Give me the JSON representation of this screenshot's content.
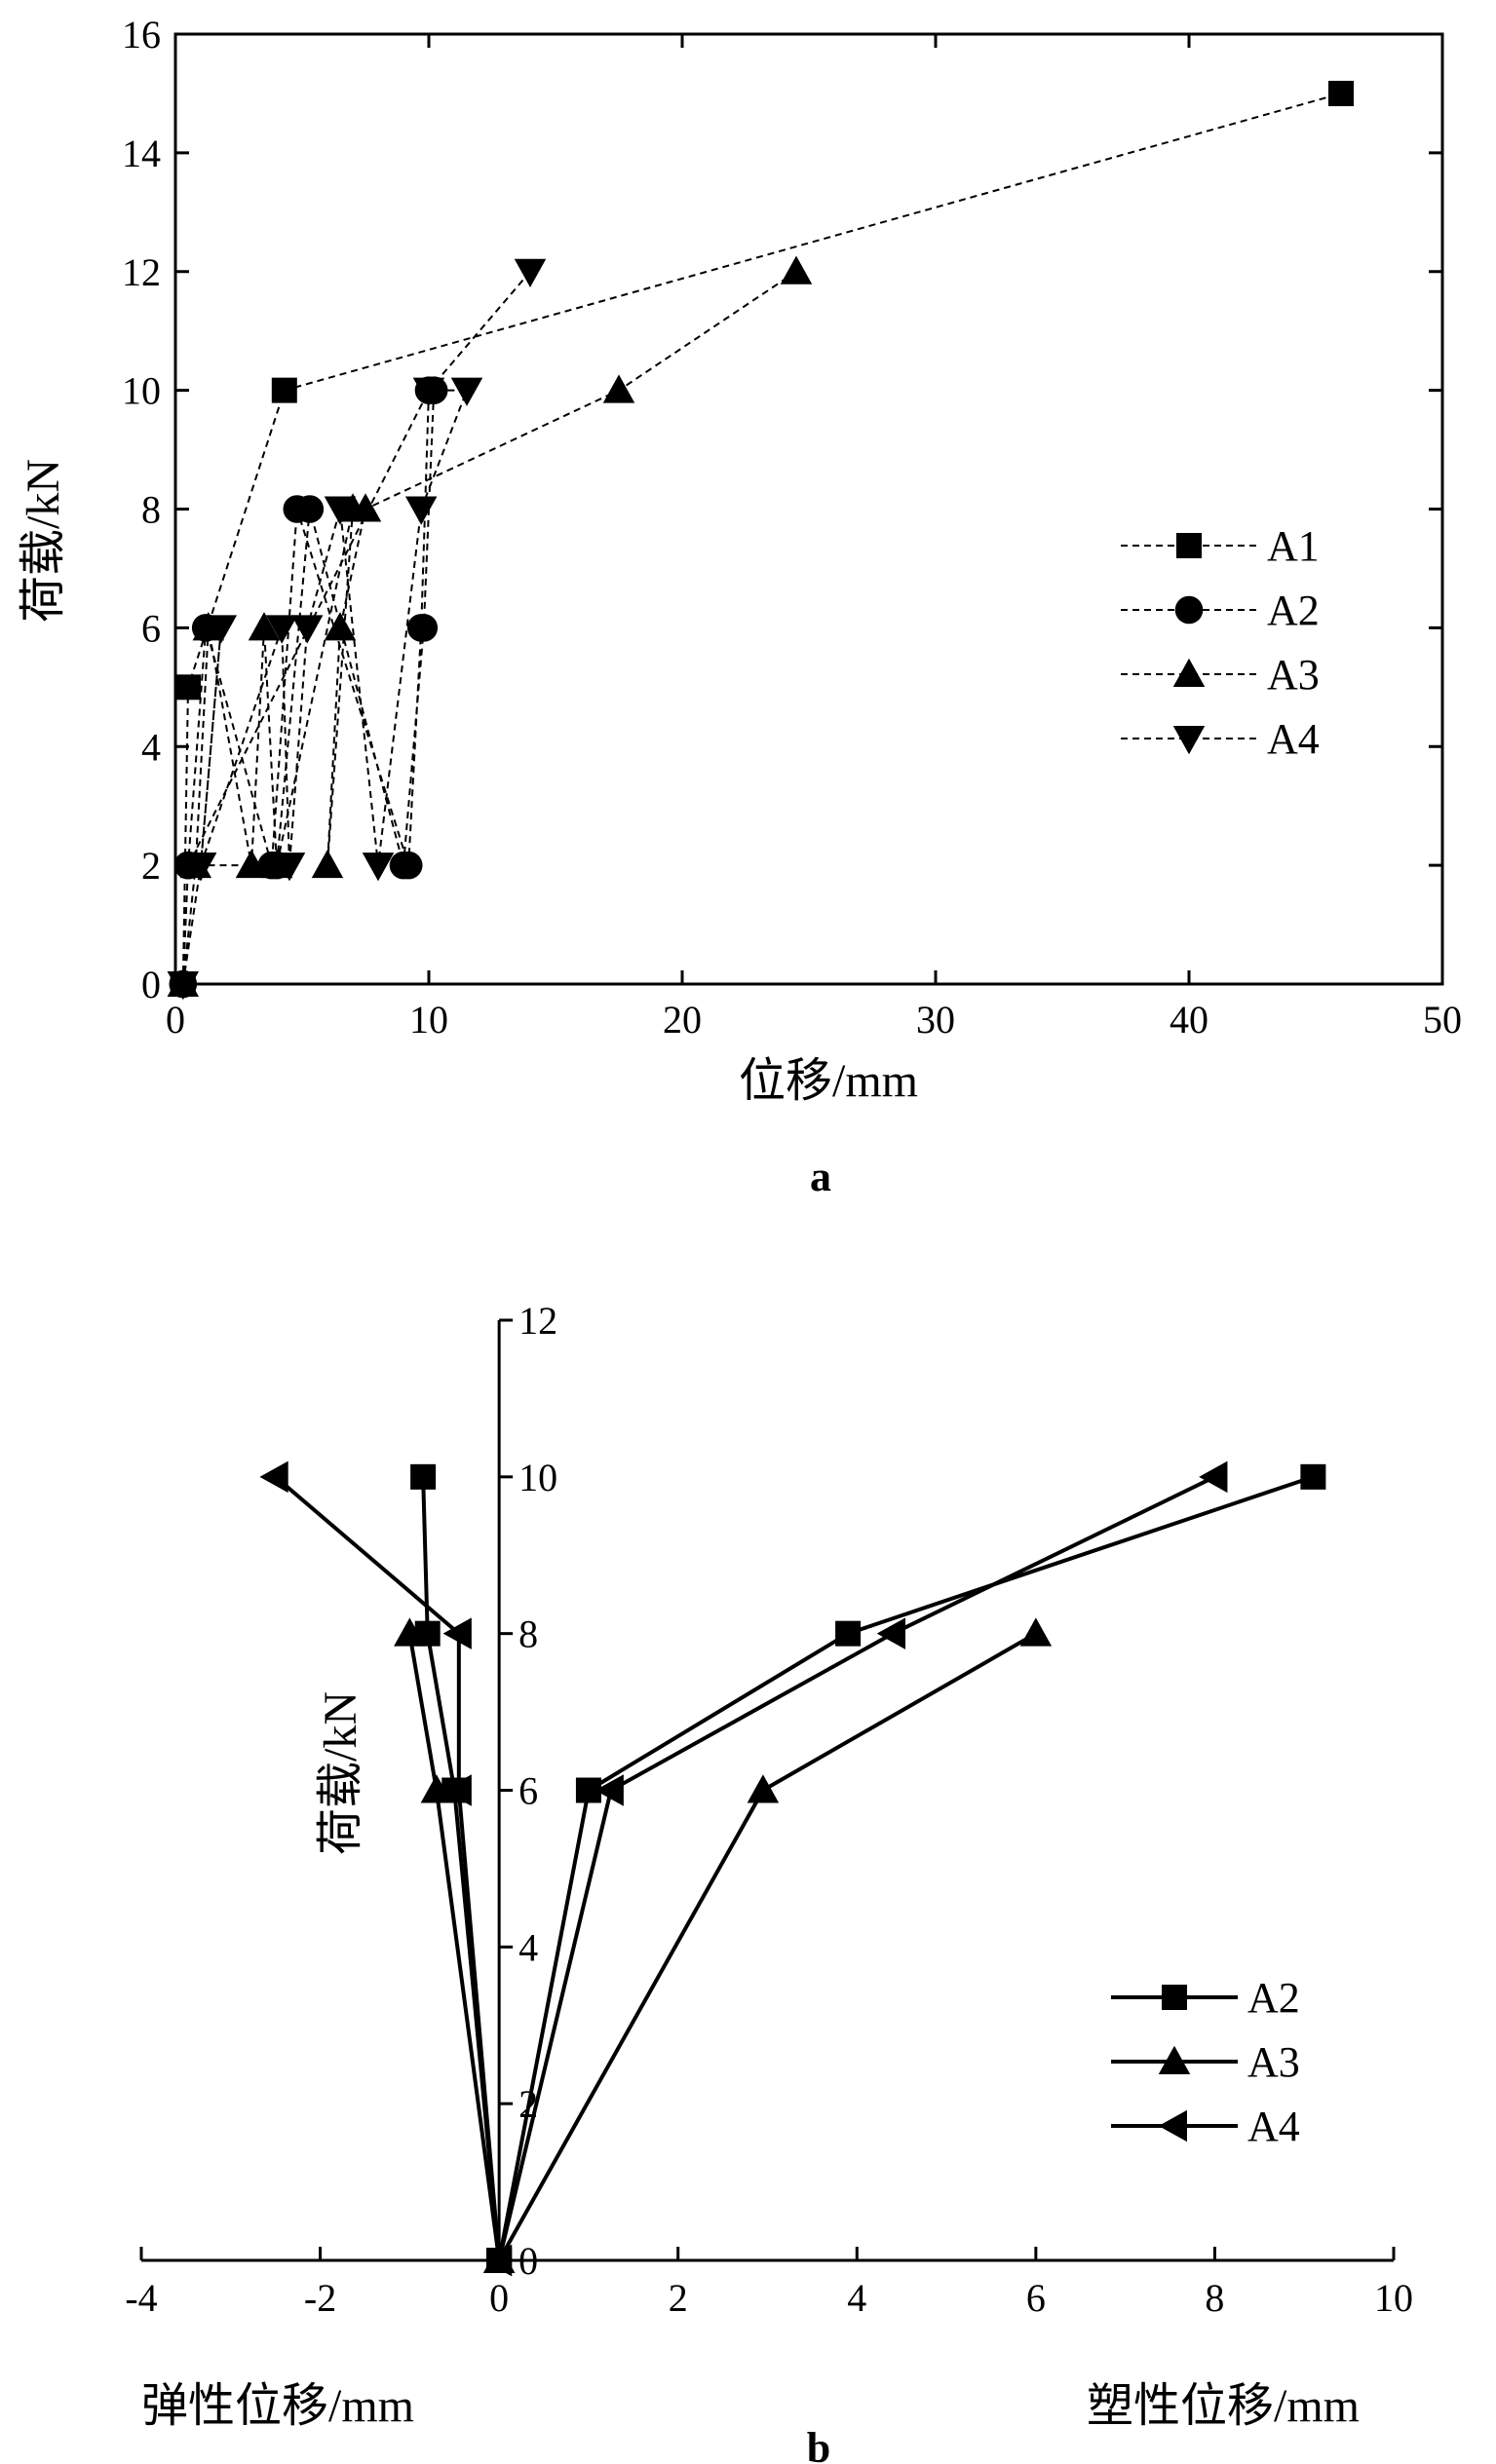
{
  "chart_data": [
    {
      "type": "line",
      "panel_label": "a",
      "xlabel": "位移/mm",
      "ylabel": "荷载/kN",
      "xlim": [
        0,
        50
      ],
      "ylim": [
        0,
        16
      ],
      "xticks": [
        "0",
        "10",
        "20",
        "30",
        "40",
        "50"
      ],
      "yticks": [
        "0",
        "2",
        "4",
        "6",
        "8",
        "10",
        "12",
        "14",
        "16"
      ],
      "line_style": "dashed",
      "legend_position": "right",
      "series": [
        {
          "name": "A1",
          "marker": "square",
          "points": [
            [
              0.3,
              0
            ],
            [
              0.5,
              5
            ],
            [
              4.3,
              10
            ],
            [
              46,
              15
            ]
          ]
        },
        {
          "name": "A2",
          "marker": "circle",
          "points": [
            [
              0.3,
              0
            ],
            [
              0.5,
              2
            ],
            [
              1.2,
              6
            ],
            [
              3.8,
              2
            ],
            [
              4.8,
              8
            ],
            [
              9.2,
              2
            ],
            [
              9.7,
              6
            ],
            [
              10,
              10
            ],
            [
              0.5,
              2
            ],
            [
              4,
              2
            ],
            [
              5.3,
              8
            ],
            [
              9,
              2
            ],
            [
              9.8,
              6
            ],
            [
              10.2,
              10
            ]
          ]
        },
        {
          "name": "A3",
          "marker": "triangle-up",
          "points": [
            [
              0.3,
              0
            ],
            [
              0.8,
              2
            ],
            [
              1.3,
              6
            ],
            [
              3,
              2
            ],
            [
              3.5,
              6
            ],
            [
              4,
              2
            ],
            [
              7,
              8
            ],
            [
              6,
              2
            ],
            [
              6.5,
              6
            ],
            [
              7.5,
              8
            ],
            [
              17.5,
              10
            ],
            [
              24.5,
              12
            ]
          ]
        },
        {
          "name": "A4",
          "marker": "triangle-down",
          "points": [
            [
              0.3,
              0
            ],
            [
              1,
              2
            ],
            [
              1.8,
              6
            ],
            [
              1,
              2
            ],
            [
              4.2,
              6
            ],
            [
              4.5,
              2
            ],
            [
              5.2,
              6
            ],
            [
              6.5,
              8
            ],
            [
              8,
              2
            ],
            [
              9.7,
              8
            ],
            [
              11.5,
              10
            ],
            [
              10,
              10
            ],
            [
              14,
              12
            ]
          ]
        }
      ]
    },
    {
      "type": "line",
      "panel_label": "b",
      "xlabel_left": "弹性位移/mm",
      "xlabel_right": "塑性位移/mm",
      "ylabel": "荷载/kN",
      "xlim": [
        -4,
        10
      ],
      "ylim": [
        0,
        12
      ],
      "xticks": [
        "-4",
        "-2",
        "0",
        "2",
        "4",
        "6",
        "8",
        "10"
      ],
      "yticks": [
        "0",
        "2",
        "4",
        "6",
        "8",
        "10",
        "12"
      ],
      "line_style": "solid",
      "legend_position": "bottom-right",
      "series": [
        {
          "name": "A2",
          "marker": "square",
          "elastic": [
            [
              0,
              0
            ],
            [
              -0.5,
              6
            ],
            [
              -0.8,
              8
            ],
            [
              -0.85,
              10
            ]
          ],
          "plastic": [
            [
              0,
              0
            ],
            [
              1,
              6
            ],
            [
              3.9,
              8
            ],
            [
              9.1,
              10
            ]
          ]
        },
        {
          "name": "A3",
          "marker": "triangle-up",
          "elastic": [
            [
              0,
              0
            ],
            [
              -0.7,
              6
            ],
            [
              -1,
              8
            ]
          ],
          "plastic": [
            [
              0,
              0
            ],
            [
              2.95,
              6
            ],
            [
              6,
              8
            ]
          ]
        },
        {
          "name": "A4",
          "marker": "triangle-left",
          "elastic": [
            [
              0,
              0
            ],
            [
              -0.45,
              6
            ],
            [
              -0.45,
              8
            ],
            [
              -2.5,
              10
            ]
          ],
          "plastic": [
            [
              0,
              0
            ],
            [
              1.25,
              6
            ],
            [
              4.4,
              8
            ],
            [
              8,
              10
            ]
          ]
        }
      ]
    }
  ]
}
